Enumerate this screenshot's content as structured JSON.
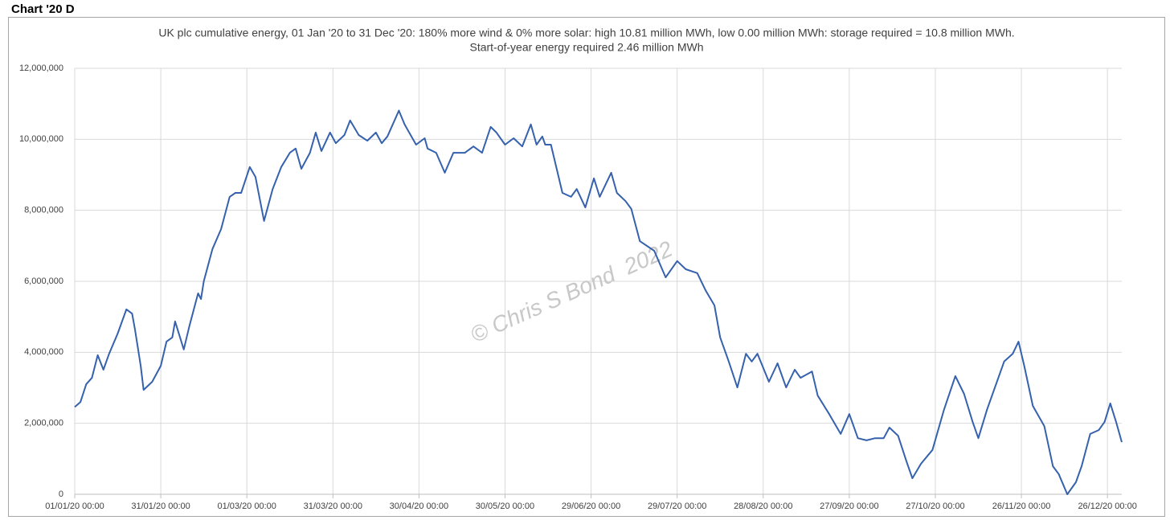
{
  "heading": "Chart '20 D",
  "chart_data": {
    "type": "line",
    "title": "UK plc cumulative energy, 01 Jan '20 to 31 Dec '20: 180% more wind & 0% more solar: high 10.81 million MWh, low 0.00 million MWh: storage required = 10.8 million MWh.",
    "subtitle": "Start-of-year energy required 2.46 million MWh",
    "annotation": "© Chris S Bond  2022",
    "grid": true,
    "xlim": [
      "2020-01-01",
      "2020-12-31"
    ],
    "xticks": [
      {
        "value": "2020-01-01",
        "label": "01/01/20 00:00"
      },
      {
        "value": "2020-01-31",
        "label": "31/01/20 00:00"
      },
      {
        "value": "2020-03-01",
        "label": "01/03/20 00:00"
      },
      {
        "value": "2020-03-31",
        "label": "31/03/20 00:00"
      },
      {
        "value": "2020-04-30",
        "label": "30/04/20 00:00"
      },
      {
        "value": "2020-05-30",
        "label": "30/05/20 00:00"
      },
      {
        "value": "2020-06-29",
        "label": "29/06/20 00:00"
      },
      {
        "value": "2020-07-29",
        "label": "29/07/20 00:00"
      },
      {
        "value": "2020-08-28",
        "label": "28/08/20 00:00"
      },
      {
        "value": "2020-09-27",
        "label": "27/09/20 00:00"
      },
      {
        "value": "2020-10-27",
        "label": "27/10/20 00:00"
      },
      {
        "value": "2020-11-26",
        "label": "26/11/20 00:00"
      },
      {
        "value": "2020-12-26",
        "label": "26/12/20 00:00"
      }
    ],
    "ylim": [
      0,
      12000000
    ],
    "yticks": [
      0,
      {
        "value": 2000000,
        "label": "2,000,000"
      },
      {
        "value": 4000000,
        "label": "4,000,000"
      },
      {
        "value": 6000000,
        "label": "6,000,000"
      },
      {
        "value": 8000000,
        "label": "8,000,000"
      },
      {
        "value": 10000000,
        "label": "10,000,000"
      },
      {
        "value": 12000000,
        "label": "12,000,000"
      }
    ],
    "x": [
      "2020-01-01",
      "2020-01-03",
      "2020-01-05",
      "2020-01-07",
      "2020-01-09",
      "2020-01-11",
      "2020-01-13",
      "2020-01-16",
      "2020-01-19",
      "2020-01-21",
      "2020-01-22",
      "2020-01-24",
      "2020-01-25",
      "2020-01-28",
      "2020-01-31",
      "2020-02-02",
      "2020-02-04",
      "2020-02-05",
      "2020-02-08",
      "2020-02-10",
      "2020-02-13",
      "2020-02-14",
      "2020-02-15",
      "2020-02-18",
      "2020-02-21",
      "2020-02-24",
      "2020-02-26",
      "2020-02-28",
      "2020-03-02",
      "2020-03-04",
      "2020-03-07",
      "2020-03-10",
      "2020-03-13",
      "2020-03-16",
      "2020-03-18",
      "2020-03-20",
      "2020-03-23",
      "2020-03-25",
      "2020-03-27",
      "2020-03-30",
      "2020-04-01",
      "2020-04-04",
      "2020-04-06",
      "2020-04-09",
      "2020-04-12",
      "2020-04-15",
      "2020-04-17",
      "2020-04-19",
      "2020-04-23",
      "2020-04-25",
      "2020-04-29",
      "2020-05-02",
      "2020-05-03",
      "2020-05-06",
      "2020-05-09",
      "2020-05-12",
      "2020-05-16",
      "2020-05-19",
      "2020-05-22",
      "2020-05-25",
      "2020-05-27",
      "2020-05-30",
      "2020-06-02",
      "2020-06-05",
      "2020-06-08",
      "2020-06-10",
      "2020-06-12",
      "2020-06-13",
      "2020-06-15",
      "2020-06-19",
      "2020-06-22",
      "2020-06-24",
      "2020-06-27",
      "2020-06-30",
      "2020-07-02",
      "2020-07-06",
      "2020-07-08",
      "2020-07-11",
      "2020-07-13",
      "2020-07-16",
      "2020-07-21",
      "2020-07-25",
      "2020-07-29",
      "2020-08-01",
      "2020-08-05",
      "2020-08-08",
      "2020-08-11",
      "2020-08-13",
      "2020-08-16",
      "2020-08-19",
      "2020-08-22",
      "2020-08-24",
      "2020-08-26",
      "2020-08-30",
      "2020-09-02",
      "2020-09-05",
      "2020-09-08",
      "2020-09-10",
      "2020-09-14",
      "2020-09-16",
      "2020-09-20",
      "2020-09-24",
      "2020-09-27",
      "2020-09-30",
      "2020-10-03",
      "2020-10-06",
      "2020-10-09",
      "2020-10-11",
      "2020-10-14",
      "2020-10-17",
      "2020-10-19",
      "2020-10-22",
      "2020-10-26",
      "2020-10-30",
      "2020-11-03",
      "2020-11-06",
      "2020-11-09",
      "2020-11-11",
      "2020-11-14",
      "2020-11-20",
      "2020-11-23",
      "2020-11-25",
      "2020-11-27",
      "2020-11-30",
      "2020-12-04",
      "2020-12-07",
      "2020-12-09",
      "2020-12-12",
      "2020-12-15",
      "2020-12-17",
      "2020-12-20",
      "2020-12-23",
      "2020-12-25",
      "2020-12-27",
      "2020-12-29",
      "2020-12-31"
    ],
    "series": [
      {
        "name": "Cumulative energy",
        "color": "#3561ad",
        "values": [
          2460000,
          2600000,
          3100000,
          3280000,
          3920000,
          3510000,
          3960000,
          4530000,
          5210000,
          5090000,
          4640000,
          3620000,
          2940000,
          3170000,
          3620000,
          4300000,
          4420000,
          4870000,
          4080000,
          4750000,
          5660000,
          5500000,
          6000000,
          6910000,
          7470000,
          8380000,
          8490000,
          8490000,
          9220000,
          8940000,
          7700000,
          8600000,
          9220000,
          9620000,
          9740000,
          9170000,
          9620000,
          10190000,
          9670000,
          10190000,
          9890000,
          10120000,
          10530000,
          10120000,
          9960000,
          10190000,
          9890000,
          10080000,
          10810000,
          10420000,
          9850000,
          10030000,
          9740000,
          9620000,
          9060000,
          9620000,
          9620000,
          9800000,
          9620000,
          10350000,
          10190000,
          9850000,
          10030000,
          9800000,
          10420000,
          9850000,
          10080000,
          9850000,
          9850000,
          8490000,
          8380000,
          8600000,
          8080000,
          8900000,
          8380000,
          9060000,
          8490000,
          8260000,
          8040000,
          7130000,
          6860000,
          6110000,
          6570000,
          6340000,
          6230000,
          5730000,
          5320000,
          4420000,
          3740000,
          3010000,
          3960000,
          3740000,
          3960000,
          3170000,
          3690000,
          3010000,
          3510000,
          3280000,
          3460000,
          2780000,
          2260000,
          1700000,
          2260000,
          1580000,
          1520000,
          1580000,
          1580000,
          1880000,
          1650000,
          910000,
          450000,
          860000,
          1250000,
          2380000,
          3330000,
          2830000,
          2040000,
          1580000,
          2380000,
          3740000,
          3960000,
          4300000,
          3620000,
          2490000,
          1920000,
          790000,
          570000,
          0,
          340000,
          790000,
          1700000,
          1810000,
          2040000,
          2560000,
          2040000,
          1470000
        ]
      }
    ]
  }
}
